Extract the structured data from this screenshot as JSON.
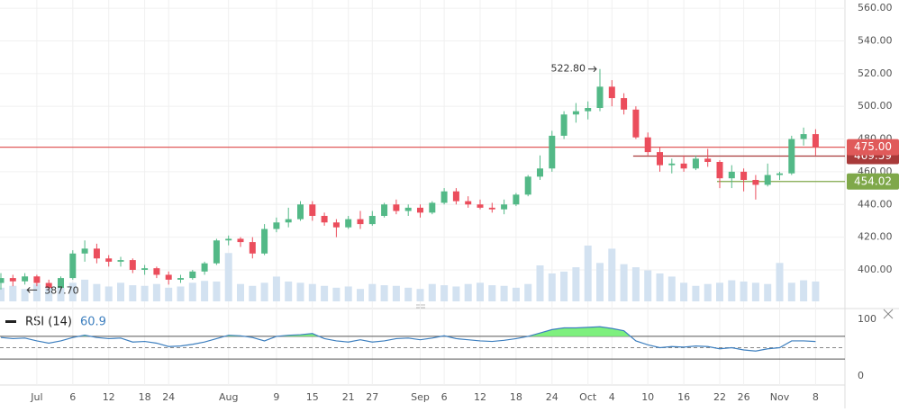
{
  "chart_data": {
    "type": "candlestick",
    "colors": {
      "up": "#53b987",
      "down": "#eb4d5c",
      "volume": "#d3e2f1",
      "rsi": "#3d7fbf",
      "rsi_fill": "#7ef07e"
    },
    "categories": [
      null,
      null,
      null,
      "Jul",
      null,
      null,
      "6",
      null,
      null,
      "12",
      null,
      null,
      "18",
      null,
      "24",
      null,
      null,
      null,
      null,
      "Aug",
      null,
      null,
      null,
      "9",
      null,
      null,
      "15",
      null,
      null,
      "21",
      null,
      "27",
      null,
      null,
      null,
      "Sep",
      null,
      "6",
      null,
      null,
      "12",
      null,
      null,
      "18",
      null,
      null,
      "24",
      null,
      null,
      "Oct",
      null,
      "4",
      null,
      null,
      "10",
      null,
      null,
      "16",
      null,
      null,
      "22",
      null,
      "26",
      null,
      null,
      "Nov",
      null,
      null,
      "8"
    ],
    "candles": [
      [
        392,
        398,
        388,
        395
      ],
      [
        395,
        397,
        390,
        393
      ],
      [
        393,
        398,
        391,
        396
      ],
      [
        396,
        397,
        390,
        392
      ],
      [
        392,
        394,
        387.7,
        389
      ],
      [
        389,
        396,
        388,
        395
      ],
      [
        395,
        412,
        394,
        410
      ],
      [
        410,
        418,
        405,
        413
      ],
      [
        413,
        416,
        404,
        407
      ],
      [
        407,
        409,
        402,
        405
      ],
      [
        405,
        408,
        402,
        406
      ],
      [
        406,
        407,
        398,
        400
      ],
      [
        400,
        403,
        397,
        401
      ],
      [
        401,
        402,
        395,
        397
      ],
      [
        397,
        399,
        391,
        394
      ],
      [
        394,
        397,
        392,
        395
      ],
      [
        395,
        400,
        394,
        399
      ],
      [
        399,
        405,
        397,
        404
      ],
      [
        404,
        419,
        403,
        418
      ],
      [
        418,
        421,
        415,
        419
      ],
      [
        419,
        420,
        414,
        417
      ],
      [
        417,
        420,
        407,
        410
      ],
      [
        410,
        428,
        409,
        425
      ],
      [
        425,
        432,
        423,
        429
      ],
      [
        429,
        438,
        426,
        431
      ],
      [
        431,
        442,
        430,
        440
      ],
      [
        440,
        442,
        430,
        433
      ],
      [
        433,
        435,
        427,
        429
      ],
      [
        429,
        431,
        420,
        426
      ],
      [
        426,
        433,
        425,
        431
      ],
      [
        431,
        436,
        425,
        428
      ],
      [
        428,
        436,
        427,
        433
      ],
      [
        433,
        441,
        432,
        440
      ],
      [
        440,
        443,
        434,
        436
      ],
      [
        436,
        440,
        433,
        438
      ],
      [
        438,
        440,
        432,
        435
      ],
      [
        435,
        442,
        434,
        441
      ],
      [
        441,
        450,
        440,
        448
      ],
      [
        448,
        450,
        440,
        442
      ],
      [
        442,
        445,
        438,
        440
      ],
      [
        440,
        443,
        437,
        438
      ],
      [
        438,
        441,
        435,
        437
      ],
      [
        437,
        443,
        434,
        440
      ],
      [
        440,
        447,
        439,
        446
      ],
      [
        446,
        458,
        445,
        457
      ],
      [
        457,
        470,
        455,
        462
      ],
      [
        462,
        485,
        460,
        482
      ],
      [
        482,
        497,
        480,
        495
      ],
      [
        495,
        502,
        490,
        497
      ],
      [
        497,
        503,
        492,
        499
      ],
      [
        499,
        522.8,
        497,
        512
      ],
      [
        512,
        516,
        500,
        505
      ],
      [
        505,
        508,
        495,
        498
      ],
      [
        498,
        500,
        480,
        481
      ],
      [
        481,
        484,
        470,
        472
      ],
      [
        472,
        475,
        460,
        464
      ],
      [
        464,
        468,
        459,
        465
      ],
      [
        465,
        470,
        460,
        462
      ],
      [
        462,
        470,
        461,
        468
      ],
      [
        468,
        474,
        463,
        466
      ],
      [
        466,
        467,
        450,
        456
      ],
      [
        456,
        464,
        450,
        460
      ],
      [
        460,
        462,
        448,
        455
      ],
      [
        455,
        458,
        443,
        452
      ],
      [
        452,
        465,
        451,
        458
      ],
      [
        458,
        460,
        455,
        459
      ],
      [
        459,
        482,
        458,
        480
      ],
      [
        480,
        487,
        476,
        483
      ],
      [
        483,
        486,
        470,
        475
      ]
    ],
    "volume": [
      22,
      25,
      20,
      28,
      24,
      22,
      30,
      35,
      28,
      24,
      30,
      26,
      25,
      28,
      22,
      24,
      30,
      33,
      32,
      78,
      28,
      25,
      30,
      40,
      32,
      30,
      28,
      25,
      22,
      24,
      20,
      28,
      26,
      25,
      22,
      20,
      28,
      26,
      24,
      28,
      30,
      26,
      25,
      22,
      28,
      58,
      45,
      48,
      55,
      90,
      62,
      85,
      60,
      55,
      50,
      45,
      40,
      30,
      25,
      28,
      30,
      34,
      32,
      30,
      28,
      62,
      30,
      34,
      32
    ],
    "ylim": [
      378,
      565
    ],
    "yticks": [
      {
        "value": 400,
        "label": "400.00"
      },
      {
        "value": 420,
        "label": "420.00"
      },
      {
        "value": 440,
        "label": "440.00"
      },
      {
        "value": 460,
        "label": "460.00"
      },
      {
        "value": 480,
        "label": "480.00"
      },
      {
        "value": 500,
        "label": "500.00"
      },
      {
        "value": 520,
        "label": "520.00"
      },
      {
        "value": 540,
        "label": "540.00"
      },
      {
        "value": 560,
        "label": "560.00"
      }
    ],
    "price_lines": [
      {
        "value": 469.59,
        "label": "469.59",
        "color": "#a83a3a",
        "from": 53
      },
      {
        "value": 475,
        "label": "475.00",
        "color": "#e05a5a",
        "from": 0
      },
      {
        "value": 454.02,
        "label": "454.02",
        "color": "#7fa84a",
        "from": 60
      }
    ],
    "high_note": {
      "value": 522.8,
      "label": "522.80"
    },
    "low_note": {
      "value": 387.7,
      "label": "387.70"
    },
    "rsi": {
      "name": "RSI (14)",
      "last": 60.9,
      "ylim": [
        -16,
        116
      ],
      "yticks": [
        0,
        100
      ],
      "upper": 70,
      "middle": 50,
      "lower": 30,
      "values": [
        68,
        66,
        67,
        62,
        58,
        62,
        68,
        72,
        68,
        66,
        67,
        60,
        61,
        58,
        52,
        53,
        56,
        60,
        66,
        72,
        71,
        68,
        62,
        70,
        72,
        73,
        75,
        66,
        62,
        60,
        64,
        60,
        62,
        66,
        67,
        64,
        67,
        71,
        66,
        64,
        62,
        61,
        63,
        66,
        70,
        76,
        82,
        85,
        85,
        86,
        87,
        84,
        80,
        62,
        55,
        50,
        52,
        51,
        53,
        52,
        48,
        50,
        46,
        44,
        48,
        50,
        62,
        62,
        60.9
      ]
    }
  }
}
